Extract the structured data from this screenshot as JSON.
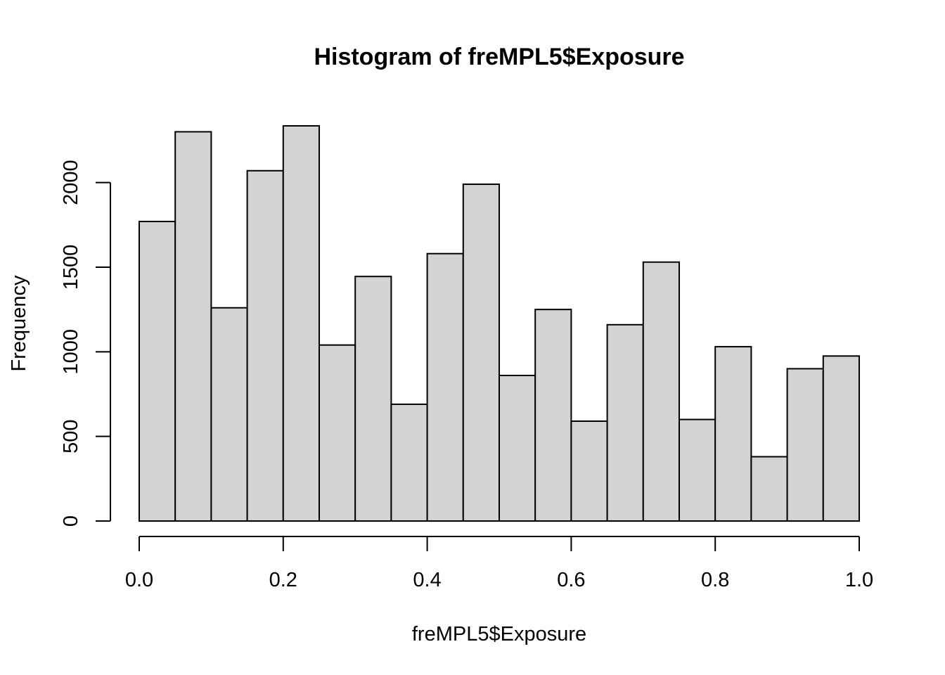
{
  "chart_data": {
    "type": "bar",
    "title": "Histogram of freMPL5$Exposure",
    "xlabel": "freMPL5$Exposure",
    "ylabel": "Frequency",
    "bin_edges": [
      0.0,
      0.05,
      0.1,
      0.15,
      0.2,
      0.25,
      0.3,
      0.35,
      0.4,
      0.45,
      0.5,
      0.55,
      0.6,
      0.65,
      0.7,
      0.75,
      0.8,
      0.85,
      0.9,
      0.95,
      1.0
    ],
    "values": [
      1770,
      2300,
      1260,
      2070,
      2335,
      1040,
      1445,
      690,
      1580,
      1990,
      860,
      1250,
      590,
      1160,
      1530,
      600,
      1030,
      380,
      900,
      975
    ],
    "xlim": [
      0.0,
      1.0
    ],
    "ylim": [
      0,
      2335
    ],
    "x_ticks": [
      "0.0",
      "0.2",
      "0.4",
      "0.6",
      "0.8",
      "1.0"
    ],
    "x_tick_values": [
      0.0,
      0.2,
      0.4,
      0.6,
      0.8,
      1.0
    ],
    "y_ticks": [
      "0",
      "500",
      "1000",
      "1500",
      "2000"
    ],
    "y_tick_values": [
      0,
      500,
      1000,
      1500,
      2000
    ],
    "grid": false,
    "bar_fill": "#d3d3d3",
    "bar_stroke": "#000000"
  }
}
